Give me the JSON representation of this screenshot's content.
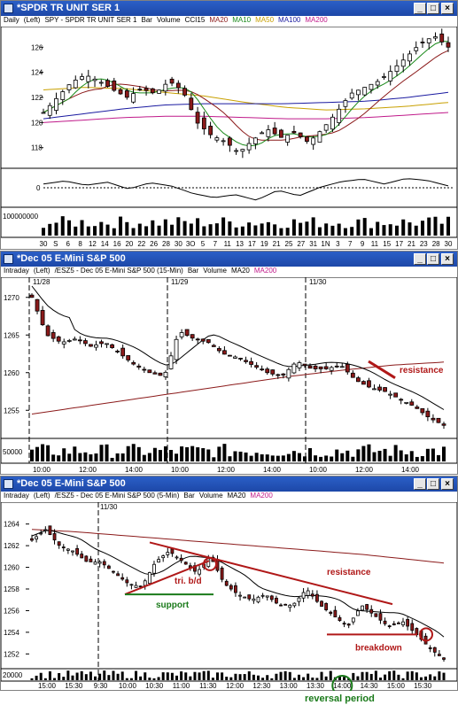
{
  "colors": {
    "titlebar": "#1d48a8",
    "candle_up": "#ffffff",
    "candle_down": "#8b1a1a",
    "ma_green": "#1a8a1a",
    "ma_yellow": "#c8a000",
    "ma_blue": "#1a1aa0",
    "ma_purple": "#c01a8a",
    "ma_maroon": "#8b1a1a",
    "annotation_red": "#b01818",
    "annotation_green": "#1a7a1a"
  },
  "windows": [
    {
      "title": "*SPDR TR UNIT SER 1",
      "info": {
        "interval": "Daily",
        "scale": "(Left)",
        "symbol": "SPY - SPDR TR UNIT SER 1",
        "style": "Bar",
        "extra": [
          "Volume",
          "CCI15"
        ],
        "mas": [
          {
            "label": "MA20",
            "color": "#8b1a1a"
          },
          {
            "label": "MA10",
            "color": "#1a8a1a"
          },
          {
            "label": "MA50",
            "color": "#c8a000"
          },
          {
            "label": "MA100",
            "color": "#1a1aa0"
          },
          {
            "label": "MA200",
            "color": "#c01a8a"
          }
        ]
      },
      "y_ticks": [
        "126",
        "124",
        "122",
        "120",
        "118"
      ],
      "indicator_ticks": [
        "0"
      ],
      "volume_ticks": [
        "100000000"
      ],
      "x_ticks": [
        "30",
        "S",
        "6",
        "8",
        "12",
        "14",
        "16",
        "20",
        "22",
        "26",
        "28",
        "30",
        "3O",
        "5",
        "7",
        "11",
        "13",
        "17",
        "19",
        "21",
        "25",
        "27",
        "31",
        "1N",
        "3",
        "7",
        "9",
        "11",
        "15",
        "17",
        "21",
        "23",
        "28",
        "30"
      ]
    },
    {
      "title": "*Dec 05  E-Mini S&P 500",
      "info": {
        "interval": "Intraday",
        "scale": "(Left)",
        "symbol": "/ESZ5 - Dec 05  E-Mini S&P 500 (15-Min)",
        "style": "Bar",
        "extra": [
          "Volume"
        ],
        "mas": [
          {
            "label": "MA20",
            "color": "#000000"
          },
          {
            "label": "MA200",
            "color": "#c01a8a"
          }
        ]
      },
      "date_labels": [
        "11/28",
        "11/29",
        "11/30"
      ],
      "y_ticks": [
        "1270",
        "1265",
        "1260",
        "1255"
      ],
      "volume_ticks": [
        "50000"
      ],
      "x_ticks": [
        "10:00",
        "12:00",
        "14:00",
        "10:00",
        "12:00",
        "14:00",
        "10:00",
        "12:00",
        "14:00"
      ],
      "annotations": {
        "resistance": "resistance"
      }
    },
    {
      "title": "*Dec 05  E-Mini S&P 500",
      "info": {
        "interval": "Intraday",
        "scale": "(Left)",
        "symbol": "/ESZ5 - Dec 05  E-Mini S&P 500 (5-Min)",
        "style": "Bar",
        "extra": [
          "Volume"
        ],
        "mas": [
          {
            "label": "MA20",
            "color": "#000000"
          },
          {
            "label": "MA200",
            "color": "#c01a8a"
          }
        ]
      },
      "date_labels": [
        "11/30"
      ],
      "y_ticks": [
        "1264",
        "1262",
        "1260",
        "1258",
        "1256",
        "1254",
        "1252"
      ],
      "volume_ticks": [
        "20000"
      ],
      "x_ticks": [
        "15:00",
        "15:30",
        "9:30",
        "10:00",
        "10:30",
        "11:00",
        "11:30",
        "12:00",
        "12:30",
        "13:00",
        "13:30",
        "14:00",
        "14:30",
        "15:00",
        "15:30"
      ],
      "annotations": {
        "triangle": "tri. b/d",
        "support": "support",
        "resistance": "resistance",
        "breakdown": "breakdown",
        "reversal": "reversal period"
      }
    }
  ],
  "window_buttons": {
    "minimize": "_",
    "maximize": "□",
    "close": "×"
  }
}
